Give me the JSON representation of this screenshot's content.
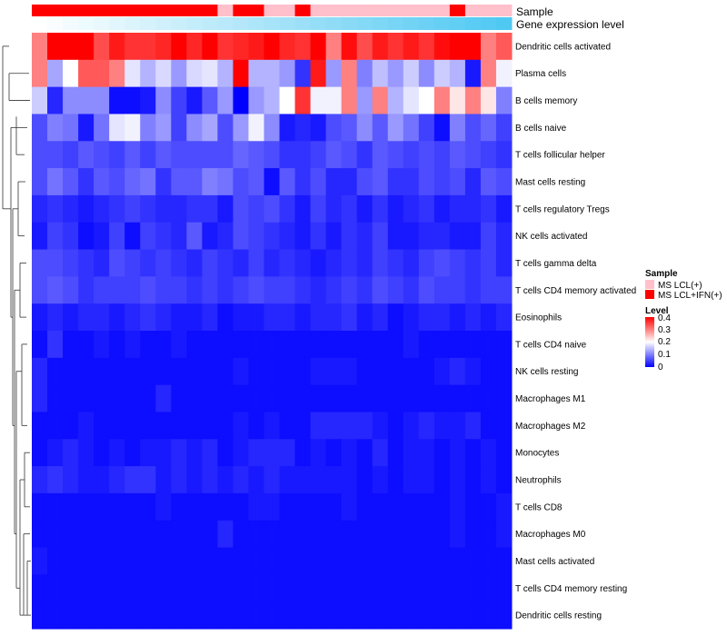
{
  "chart_data": {
    "type": "heatmap",
    "title": "",
    "annotation_labels": {
      "sample": "Sample",
      "expression": "Gene expression level"
    },
    "sample_groups": [
      "MS LCL(+)",
      "MS LCL+IFN(+)"
    ],
    "sample_colors": {
      "MS LCL(+)": "#ffc0cb",
      "MS LCL+IFN(+)": "#ff0000"
    },
    "columns_sample": [
      1,
      1,
      1,
      1,
      1,
      1,
      1,
      1,
      1,
      1,
      1,
      1,
      0,
      1,
      1,
      0,
      0,
      1,
      0,
      0,
      0,
      0,
      0,
      0,
      0,
      0,
      0,
      1,
      0,
      0,
      0
    ],
    "expression_gradient": [
      "#ffffff",
      "#4fc8f2"
    ],
    "rows": [
      "Dendritic cells activated",
      "Plasma cells",
      "B cells memory",
      "B cells naive",
      "T cells follicular helper",
      "Mast cells resting",
      "T cells regulatory  Tregs",
      "NK cells activated",
      "T cells gamma delta",
      "T cells CD4 memory activated",
      "Eosinophils",
      "T cells CD4 naive",
      "NK cells resting",
      "Macrophages M1",
      "Macrophages M2",
      "Monocytes",
      "Neutrophils",
      "T cells CD8",
      "Macrophages M0",
      "Mast cells activated",
      "T cells CD4 memory resting",
      "Dendritic cells resting"
    ],
    "values": [
      [
        0.3,
        0.4,
        0.4,
        0.4,
        0.34,
        0.38,
        0.36,
        0.36,
        0.37,
        0.4,
        0.37,
        0.4,
        0.36,
        0.37,
        0.38,
        0.4,
        0.37,
        0.36,
        0.4,
        0.3,
        0.39,
        0.34,
        0.38,
        0.36,
        0.38,
        0.36,
        0.39,
        0.4,
        0.4,
        0.3,
        0.33
      ],
      [
        0.3,
        0.13,
        0.2,
        0.33,
        0.33,
        0.3,
        0.18,
        0.14,
        0.17,
        0.12,
        0.17,
        0.18,
        0.14,
        0.4,
        0.14,
        0.14,
        0.12,
        0.04,
        0.38,
        0.12,
        0.3,
        0.1,
        0.15,
        0.12,
        0.16,
        0.11,
        0.16,
        0.14,
        0.02,
        0.3,
        0.19
      ],
      [
        0.16,
        0.03,
        0.11,
        0.11,
        0.11,
        0.01,
        0.01,
        0.02,
        0.11,
        0.05,
        0.02,
        0.07,
        0.12,
        0.0,
        0.12,
        0.14,
        0.2,
        0.36,
        0.19,
        0.19,
        0.3,
        0.12,
        0.3,
        0.14,
        0.18,
        0.2,
        0.3,
        0.22,
        0.3,
        0.22,
        0.1
      ],
      [
        0.06,
        0.1,
        0.09,
        0.02,
        0.09,
        0.18,
        0.19,
        0.1,
        0.12,
        0.05,
        0.11,
        0.13,
        0.06,
        0.12,
        0.19,
        0.11,
        0.02,
        0.03,
        0.02,
        0.06,
        0.07,
        0.11,
        0.07,
        0.12,
        0.09,
        0.05,
        0.01,
        0.1,
        0.06,
        0.08,
        0.05
      ],
      [
        0.06,
        0.06,
        0.05,
        0.07,
        0.06,
        0.05,
        0.07,
        0.05,
        0.07,
        0.06,
        0.06,
        0.06,
        0.06,
        0.08,
        0.07,
        0.06,
        0.04,
        0.04,
        0.05,
        0.07,
        0.06,
        0.04,
        0.07,
        0.06,
        0.05,
        0.06,
        0.05,
        0.07,
        0.06,
        0.05,
        0.04
      ],
      [
        0.06,
        0.09,
        0.07,
        0.04,
        0.07,
        0.06,
        0.08,
        0.09,
        0.04,
        0.07,
        0.07,
        0.1,
        0.09,
        0.06,
        0.07,
        0.01,
        0.07,
        0.04,
        0.06,
        0.03,
        0.03,
        0.06,
        0.07,
        0.04,
        0.04,
        0.06,
        0.05,
        0.06,
        0.03,
        0.07,
        0.06
      ],
      [
        0.03,
        0.04,
        0.03,
        0.02,
        0.03,
        0.04,
        0.05,
        0.04,
        0.03,
        0.03,
        0.04,
        0.04,
        0.02,
        0.06,
        0.05,
        0.06,
        0.04,
        0.02,
        0.05,
        0.03,
        0.04,
        0.02,
        0.04,
        0.02,
        0.03,
        0.04,
        0.02,
        0.03,
        0.03,
        0.04,
        0.02
      ],
      [
        0.02,
        0.05,
        0.04,
        0.01,
        0.02,
        0.05,
        0.01,
        0.05,
        0.04,
        0.03,
        0.07,
        0.02,
        0.03,
        0.06,
        0.05,
        0.04,
        0.03,
        0.02,
        0.04,
        0.02,
        0.04,
        0.03,
        0.05,
        0.02,
        0.02,
        0.03,
        0.03,
        0.02,
        0.02,
        0.05,
        0.03
      ],
      [
        0.06,
        0.06,
        0.05,
        0.04,
        0.03,
        0.06,
        0.05,
        0.04,
        0.05,
        0.04,
        0.03,
        0.05,
        0.04,
        0.03,
        0.05,
        0.03,
        0.04,
        0.03,
        0.02,
        0.03,
        0.04,
        0.03,
        0.05,
        0.04,
        0.03,
        0.05,
        0.06,
        0.05,
        0.04,
        0.05,
        0.03
      ],
      [
        0.06,
        0.07,
        0.06,
        0.04,
        0.05,
        0.05,
        0.05,
        0.06,
        0.05,
        0.05,
        0.04,
        0.05,
        0.04,
        0.05,
        0.06,
        0.05,
        0.05,
        0.04,
        0.03,
        0.04,
        0.05,
        0.04,
        0.06,
        0.05,
        0.04,
        0.06,
        0.05,
        0.05,
        0.04,
        0.05,
        0.05
      ],
      [
        0.02,
        0.03,
        0.02,
        0.03,
        0.03,
        0.02,
        0.03,
        0.04,
        0.03,
        0.02,
        0.02,
        0.03,
        0.01,
        0.02,
        0.02,
        0.03,
        0.03,
        0.02,
        0.03,
        0.03,
        0.04,
        0.02,
        0.03,
        0.01,
        0.02,
        0.03,
        0.03,
        0.02,
        0.03,
        0.02,
        0.03
      ],
      [
        0.01,
        0.04,
        0.01,
        0.01,
        0.02,
        0.01,
        0.02,
        0.01,
        0.01,
        0.02,
        0.01,
        0.01,
        0.01,
        0.01,
        0.01,
        0.01,
        0.01,
        0.01,
        0.01,
        0.01,
        0.01,
        0.01,
        0.01,
        0.01,
        0.02,
        0.01,
        0.01,
        0.01,
        0.01,
        0.01,
        0.01
      ],
      [
        0.03,
        0.01,
        0.01,
        0.01,
        0.01,
        0.01,
        0.01,
        0.01,
        0.01,
        0.01,
        0.01,
        0.01,
        0.01,
        0.02,
        0.01,
        0.01,
        0.01,
        0.01,
        0.02,
        0.02,
        0.02,
        0.01,
        0.01,
        0.01,
        0.01,
        0.01,
        0.02,
        0.03,
        0.02,
        0.01,
        0.01
      ],
      [
        0.03,
        0.01,
        0.01,
        0.01,
        0.01,
        0.01,
        0.01,
        0.01,
        0.03,
        0.01,
        0.01,
        0.01,
        0.01,
        0.01,
        0.01,
        0.01,
        0.01,
        0.01,
        0.01,
        0.01,
        0.01,
        0.01,
        0.01,
        0.01,
        0.01,
        0.01,
        0.01,
        0.01,
        0.01,
        0.01,
        0.01
      ],
      [
        0.01,
        0.01,
        0.01,
        0.02,
        0.01,
        0.01,
        0.01,
        0.01,
        0.01,
        0.01,
        0.01,
        0.01,
        0.01,
        0.02,
        0.01,
        0.02,
        0.01,
        0.01,
        0.03,
        0.03,
        0.03,
        0.03,
        0.02,
        0.01,
        0.02,
        0.03,
        0.02,
        0.02,
        0.03,
        0.01,
        0.01
      ],
      [
        0.01,
        0.02,
        0.03,
        0.02,
        0.01,
        0.02,
        0.01,
        0.02,
        0.02,
        0.03,
        0.02,
        0.03,
        0.01,
        0.02,
        0.03,
        0.03,
        0.03,
        0.01,
        0.02,
        0.01,
        0.02,
        0.01,
        0.03,
        0.01,
        0.02,
        0.02,
        0.01,
        0.02,
        0.01,
        0.02,
        0.01
      ],
      [
        0.03,
        0.04,
        0.03,
        0.02,
        0.02,
        0.03,
        0.04,
        0.04,
        0.02,
        0.03,
        0.02,
        0.03,
        0.02,
        0.03,
        0.02,
        0.03,
        0.02,
        0.02,
        0.02,
        0.02,
        0.02,
        0.01,
        0.02,
        0.01,
        0.02,
        0.02,
        0.01,
        0.02,
        0.01,
        0.02,
        0.01
      ],
      [
        0.01,
        0.01,
        0.01,
        0.01,
        0.01,
        0.01,
        0.01,
        0.01,
        0.02,
        0.01,
        0.01,
        0.01,
        0.01,
        0.01,
        0.02,
        0.02,
        0.01,
        0.01,
        0.01,
        0.01,
        0.02,
        0.01,
        0.01,
        0.01,
        0.01,
        0.01,
        0.01,
        0.02,
        0.01,
        0.01,
        0.02
      ],
      [
        0.01,
        0.01,
        0.01,
        0.01,
        0.01,
        0.01,
        0.01,
        0.01,
        0.01,
        0.01,
        0.01,
        0.01,
        0.03,
        0.01,
        0.01,
        0.01,
        0.01,
        0.01,
        0.01,
        0.01,
        0.01,
        0.01,
        0.01,
        0.01,
        0.01,
        0.01,
        0.01,
        0.02,
        0.01,
        0.01,
        0.02
      ],
      [
        0.02,
        0.01,
        0.01,
        0.01,
        0.01,
        0.01,
        0.01,
        0.01,
        0.01,
        0.01,
        0.01,
        0.01,
        0.01,
        0.01,
        0.01,
        0.01,
        0.01,
        0.01,
        0.01,
        0.01,
        0.01,
        0.01,
        0.01,
        0.01,
        0.01,
        0.01,
        0.01,
        0.01,
        0.01,
        0.01,
        0.01
      ],
      [
        0.01,
        0.01,
        0.01,
        0.01,
        0.01,
        0.01,
        0.01,
        0.01,
        0.01,
        0.01,
        0.01,
        0.01,
        0.01,
        0.01,
        0.01,
        0.01,
        0.01,
        0.01,
        0.01,
        0.01,
        0.01,
        0.01,
        0.01,
        0.01,
        0.01,
        0.01,
        0.01,
        0.01,
        0.01,
        0.01,
        0.01
      ],
      [
        0.01,
        0.01,
        0.01,
        0.01,
        0.01,
        0.01,
        0.01,
        0.01,
        0.01,
        0.01,
        0.01,
        0.01,
        0.01,
        0.01,
        0.01,
        0.01,
        0.01,
        0.01,
        0.01,
        0.01,
        0.01,
        0.01,
        0.01,
        0.01,
        0.01,
        0.01,
        0.01,
        0.01,
        0.01,
        0.01,
        0.01
      ]
    ],
    "legend": {
      "sample_title": "Sample",
      "level_title": "Level",
      "level_ticks": [
        "0.4",
        "0.3",
        "0.2",
        "0.1",
        "0"
      ],
      "level_range": [
        0,
        0.4
      ],
      "color_stops": [
        "#0000ff",
        "#ffffff",
        "#ff0000"
      ]
    },
    "dendrogram": "row clustering, left side"
  }
}
